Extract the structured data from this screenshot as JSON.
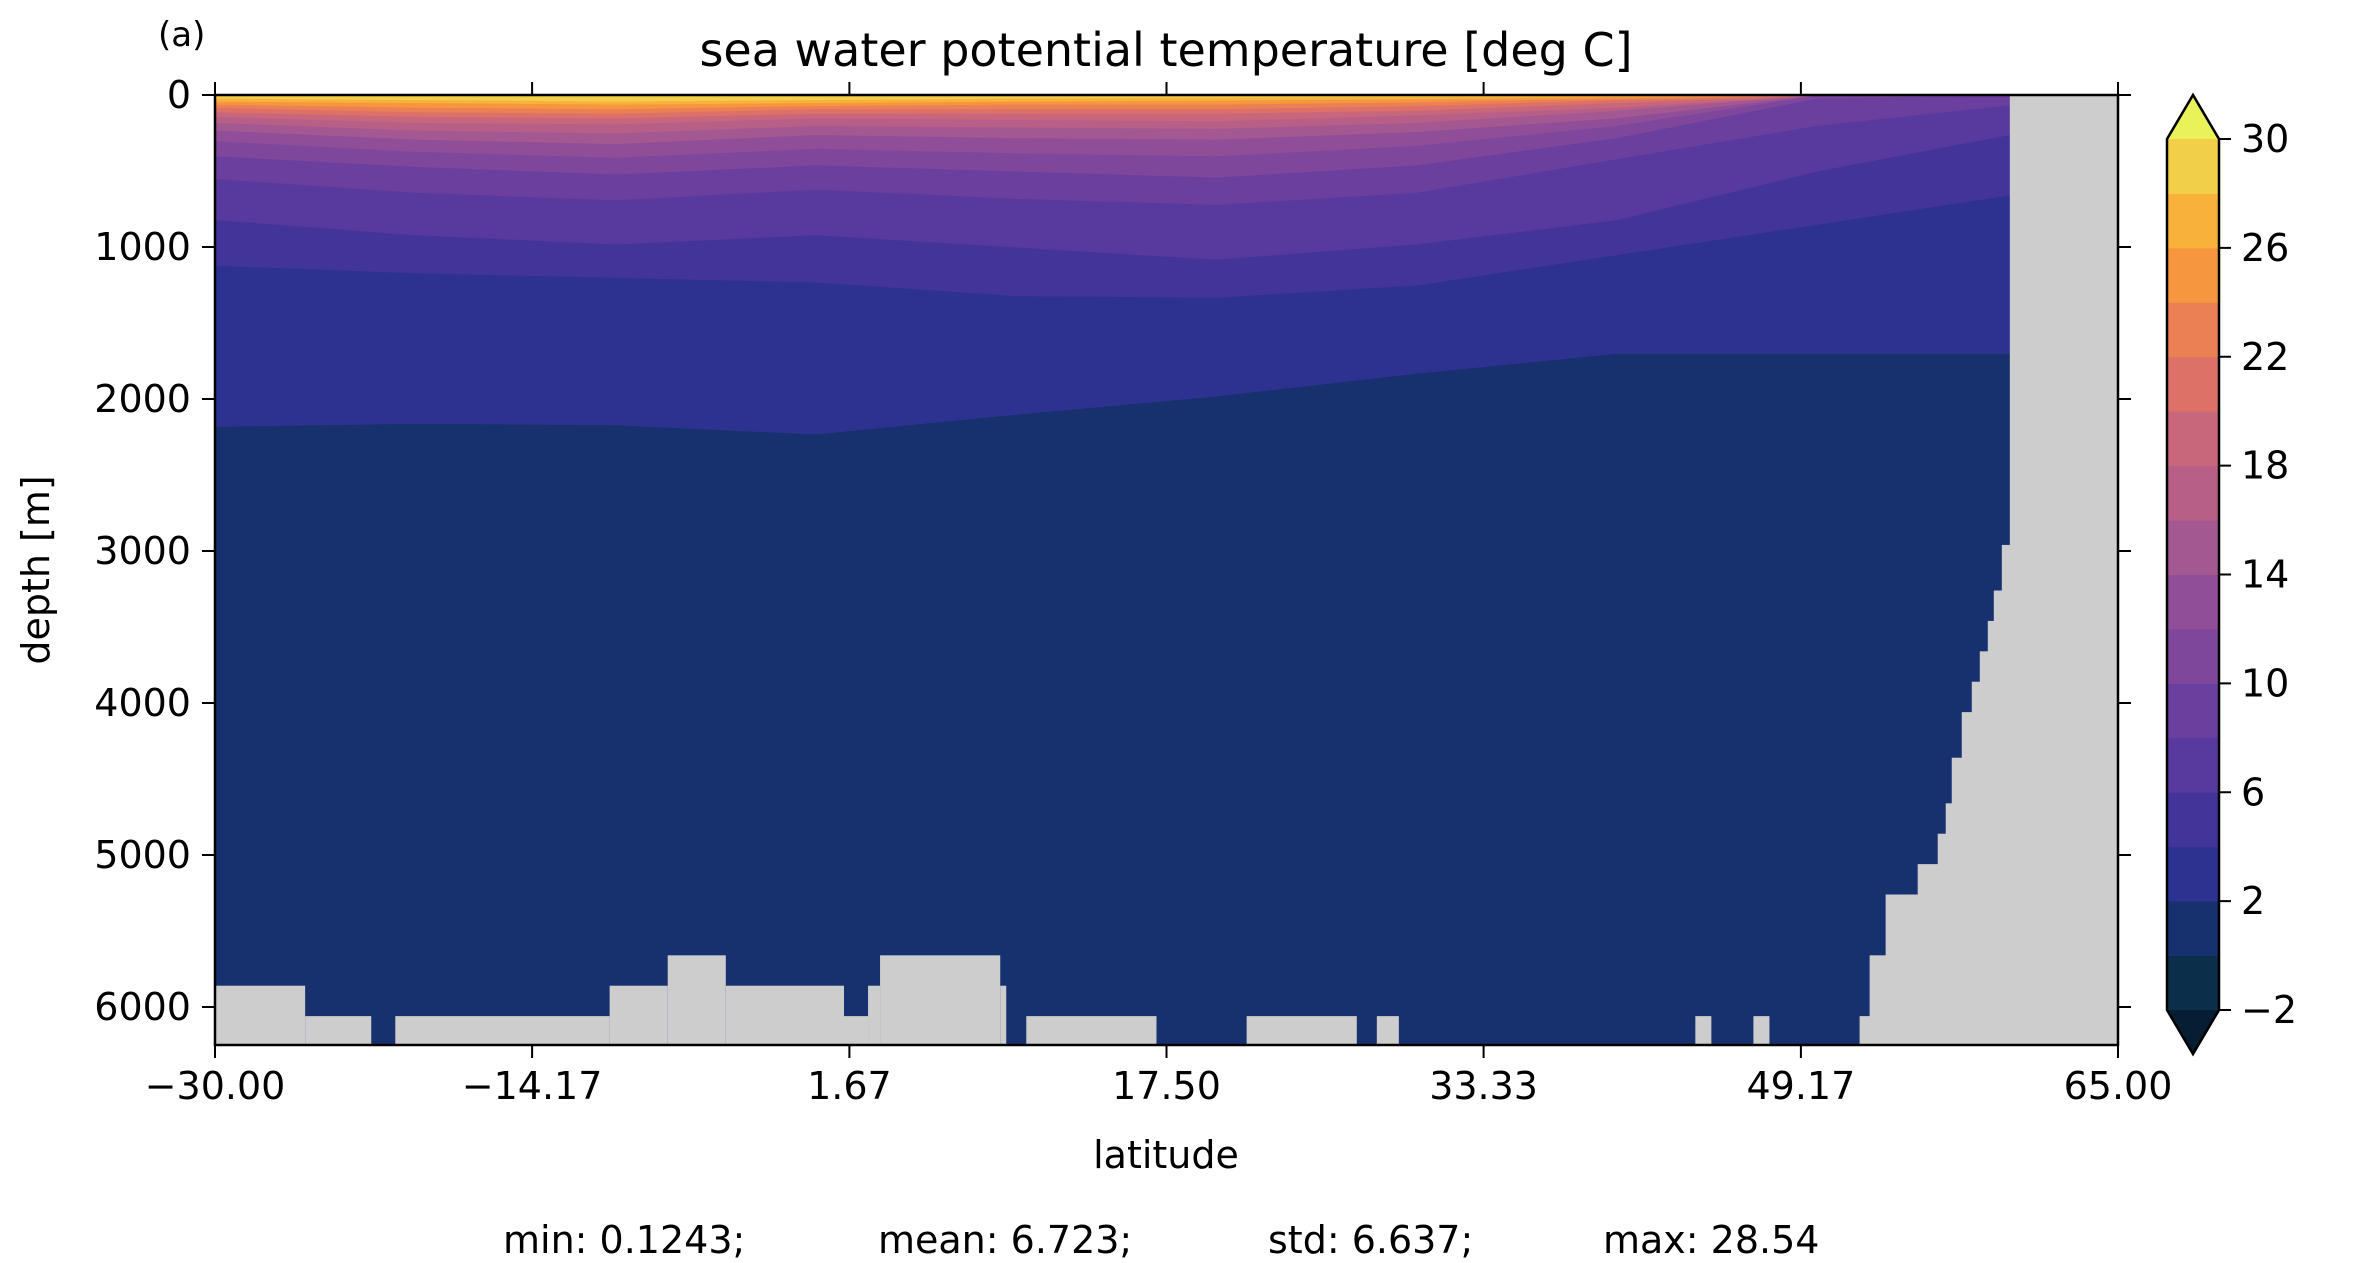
{
  "panel_label": "(a)",
  "chart_data": {
    "type": "heatmap",
    "title": "sea water potential temperature [deg C]",
    "xlabel": "latitude",
    "ylabel": "depth [m]",
    "xlim": [
      -30,
      65
    ],
    "ylim": [
      6250,
      0
    ],
    "x_ticks": [
      -30,
      -14.17,
      1.67,
      17.5,
      33.33,
      49.17,
      65
    ],
    "x_tick_labels": [
      "−30.00",
      "−14.17",
      "1.67",
      "17.50",
      "33.33",
      "49.17",
      "65.00"
    ],
    "y_ticks": [
      0,
      1000,
      2000,
      3000,
      4000,
      5000,
      6000
    ],
    "y_tick_labels": [
      "0",
      "1000",
      "2000",
      "3000",
      "4000",
      "5000",
      "6000"
    ],
    "colorbar": {
      "levels": [
        -2,
        0,
        2,
        4,
        6,
        8,
        10,
        12,
        14,
        16,
        18,
        20,
        22,
        24,
        26,
        28,
        30
      ],
      "tick_values": [
        -2,
        2,
        6,
        10,
        14,
        18,
        22,
        26,
        30
      ],
      "tick_labels": [
        "−2",
        "2",
        "6",
        "10",
        "14",
        "18",
        "22",
        "26",
        "30"
      ],
      "colors": [
        "#0b2e4a",
        "#17306e",
        "#2d3290",
        "#43349a",
        "#58399d",
        "#6b3f9d",
        "#7e479c",
        "#904e98",
        "#a45892",
        "#b85f87",
        "#c8677b",
        "#dd7168",
        "#eb8055",
        "#f6963e",
        "#f8b23b",
        "#f2cf48"
      ],
      "under_color": "#061d33",
      "over_color": "#eaf25a",
      "extend": "both"
    },
    "land_color": "#cdcdcd",
    "isotherms_depth_m": [
      {
        "temp": 28,
        "depth": [
          20,
          30,
          40,
          30,
          20,
          15,
          10,
          5,
          0,
          0
        ]
      },
      {
        "temp": 26,
        "depth": [
          40,
          50,
          60,
          50,
          40,
          35,
          25,
          10,
          0,
          0
        ]
      },
      {
        "temp": 24,
        "depth": [
          60,
          80,
          90,
          70,
          60,
          60,
          45,
          20,
          0,
          0
        ]
      },
      {
        "temp": 22,
        "depth": [
          80,
          110,
          120,
          90,
          90,
          90,
          70,
          30,
          0,
          0
        ]
      },
      {
        "temp": 20,
        "depth": [
          110,
          140,
          150,
          120,
          120,
          120,
          100,
          50,
          0,
          0
        ]
      },
      {
        "temp": 18,
        "depth": [
          140,
          180,
          190,
          150,
          160,
          170,
          130,
          80,
          0,
          0
        ]
      },
      {
        "temp": 16,
        "depth": [
          180,
          230,
          250,
          200,
          210,
          220,
          180,
          100,
          0,
          0
        ]
      },
      {
        "temp": 14,
        "depth": [
          230,
          290,
          320,
          260,
          280,
          290,
          240,
          150,
          0,
          0
        ]
      },
      {
        "temp": 12,
        "depth": [
          300,
          370,
          410,
          350,
          380,
          400,
          330,
          200,
          0,
          0
        ]
      },
      {
        "temp": 10,
        "depth": [
          400,
          470,
          520,
          460,
          500,
          540,
          460,
          280,
          20,
          0
        ]
      },
      {
        "temp": 8,
        "depth": [
          550,
          640,
          690,
          620,
          680,
          720,
          640,
          420,
          200,
          60
        ]
      },
      {
        "temp": 6,
        "depth": [
          820,
          920,
          980,
          920,
          1000,
          1080,
          980,
          820,
          500,
          250
        ]
      },
      {
        "temp": 4,
        "depth": [
          1120,
          1170,
          1200,
          1230,
          1320,
          1330,
          1250,
          1050,
          850,
          650
        ]
      },
      {
        "temp": 2,
        "depth": [
          2180,
          2160,
          2170,
          2230,
          2100,
          1980,
          1830,
          1700,
          1700,
          1700
        ]
      }
    ],
    "isotherm_latitudes": [
      -30,
      -20,
      -10,
      0,
      10,
      20,
      30,
      40,
      50,
      60
    ],
    "land_bottom": [
      {
        "lat0": -30,
        "lat1": -25.5,
        "top": 5860
      },
      {
        "lat0": -25.5,
        "lat1": -22.2,
        "top": 6060
      },
      {
        "lat0": -21,
        "lat1": -10.3,
        "top": 6060
      },
      {
        "lat0": -10.3,
        "lat1": -7.4,
        "top": 5860
      },
      {
        "lat0": -7.4,
        "lat1": -4.5,
        "top": 5660
      },
      {
        "lat0": -4.5,
        "lat1": 1.4,
        "top": 5860
      },
      {
        "lat0": 1.4,
        "lat1": 2.6,
        "top": 6060
      },
      {
        "lat0": 2.6,
        "lat1": 3.2,
        "top": 5860
      },
      {
        "lat0": 3.2,
        "lat1": 9.2,
        "top": 5660
      },
      {
        "lat0": 9.2,
        "lat1": 9.5,
        "top": 5860
      },
      {
        "lat0": 10.5,
        "lat1": 17.0,
        "top": 6060
      },
      {
        "lat0": 21.5,
        "lat1": 27.0,
        "top": 6060
      },
      {
        "lat0": 28.0,
        "lat1": 29.1,
        "top": 6060
      },
      {
        "lat0": 43.9,
        "lat1": 44.7,
        "top": 6060
      },
      {
        "lat0": 46.8,
        "lat1": 47.6,
        "top": 6060
      }
    ],
    "land_north": [
      {
        "lat0": 52.1,
        "top": 6060
      },
      {
        "lat0": 52.6,
        "top": 5660
      },
      {
        "lat0": 53.4,
        "top": 5260
      },
      {
        "lat0": 53.9,
        "top": 5460
      },
      {
        "lat0": 54.4,
        "top": 5260
      },
      {
        "lat0": 55.0,
        "top": 5060
      },
      {
        "lat0": 56.0,
        "top": 4860
      },
      {
        "lat0": 56.4,
        "top": 4660
      },
      {
        "lat0": 56.7,
        "top": 4360
      },
      {
        "lat0": 57.2,
        "top": 4060
      },
      {
        "lat0": 57.7,
        "top": 3860
      },
      {
        "lat0": 58.1,
        "top": 3660
      },
      {
        "lat0": 58.5,
        "top": 3460
      },
      {
        "lat0": 58.8,
        "top": 3260
      },
      {
        "lat0": 59.2,
        "top": 2960
      },
      {
        "lat0": 59.6,
        "top": 0
      }
    ],
    "stats": {
      "min_label": "min: 0.1243;",
      "mean_label": "mean: 6.723;",
      "std_label": "std: 6.637;",
      "max_label": "max: 28.54"
    }
  }
}
